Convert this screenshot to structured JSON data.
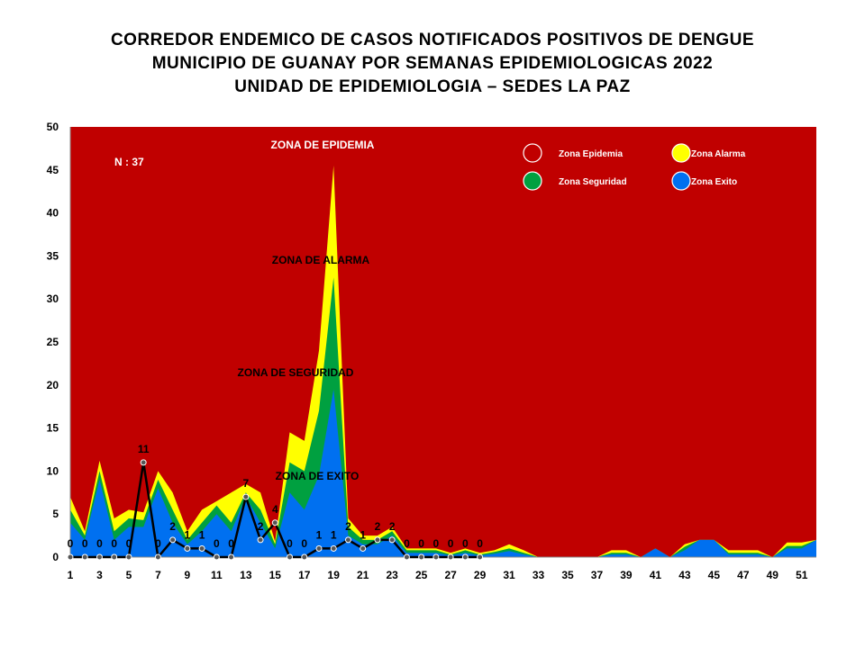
{
  "title_lines": [
    "CORREDOR ENDEMICO DE CASOS NOTIFICADOS POSITIVOS DE DENGUE",
    "MUNICIPIO DE GUANAY POR SEMANAS EPIDEMIOLOGICAS 2022",
    "UNIDAD DE EPIDEMIOLOGIA – SEDES LA PAZ"
  ],
  "colors": {
    "epidemia": "#c00000",
    "alarma": "#ffff00",
    "seguridad": "#00a040",
    "exito": "#0070f0",
    "cases_line": "#000000"
  },
  "chart_data": {
    "type": "area",
    "n_label": "N : 37",
    "zone_labels": {
      "epidemia": "ZONA DE EPIDEMIA",
      "alarma": "ZONA DE ALARMA",
      "seguridad": "ZONA DE  SEGURIDAD",
      "exito": "ZONA DE  EXITO"
    },
    "legend": [
      {
        "label": "Zona Epidemia",
        "color": "#c00000"
      },
      {
        "label": "Zona Alarma",
        "color": "#ffff00"
      },
      {
        "label": "Zona Seguridad",
        "color": "#00a040"
      },
      {
        "label": "Zona Exito",
        "color": "#0070f0"
      }
    ],
    "legend_position": "top-right",
    "ylim": [
      0,
      50
    ],
    "y_ticks": [
      0,
      5,
      10,
      15,
      20,
      25,
      30,
      35,
      40,
      45,
      50
    ],
    "x_ticks": [
      1,
      3,
      5,
      7,
      9,
      11,
      13,
      15,
      17,
      19,
      21,
      23,
      25,
      27,
      29,
      31,
      33,
      35,
      37,
      39,
      41,
      43,
      45,
      47,
      49,
      51
    ],
    "weeks": [
      1,
      2,
      3,
      4,
      5,
      6,
      7,
      8,
      9,
      10,
      11,
      12,
      13,
      14,
      15,
      16,
      17,
      18,
      19,
      20,
      21,
      22,
      23,
      24,
      25,
      26,
      27,
      28,
      29,
      30,
      31,
      32,
      33,
      34,
      35,
      36,
      37,
      38,
      39,
      40,
      41,
      42,
      43,
      44,
      45,
      46,
      47,
      48,
      49,
      50,
      51,
      52
    ],
    "alarma_upper": [
      7,
      3,
      11.2,
      4.5,
      5.5,
      5.2,
      10,
      7.5,
      3,
      5.5,
      6.5,
      7.5,
      8.5,
      7.5,
      1.8,
      14.5,
      13.5,
      24,
      45.5,
      4.5,
      2.5,
      2.5,
      3.5,
      1,
      1,
      1,
      0.5,
      1,
      0.5,
      0.8,
      1.5,
      0.8,
      0,
      0,
      0,
      0,
      0,
      0.8,
      0.8,
      0,
      1,
      0,
      1.5,
      2,
      2,
      0.8,
      0.8,
      0.8,
      0,
      1.7,
      1.7,
      2
    ],
    "seguridad_upper": [
      5.5,
      2.5,
      10,
      3,
      4.5,
      4.3,
      9,
      5.5,
      2,
      4,
      6,
      4,
      7.5,
      5.5,
      1.5,
      11,
      10,
      17,
      32.5,
      3.5,
      2,
      2,
      3,
      0.8,
      0.8,
      0.8,
      0.3,
      0.8,
      0.3,
      0.6,
      1,
      0.5,
      0,
      0,
      0,
      0,
      0,
      0.5,
      0.5,
      0,
      1,
      0,
      1.2,
      2,
      2,
      0.5,
      0.5,
      0.5,
      0,
      1.3,
      1.3,
      2
    ],
    "exito_upper": [
      4,
      2,
      9,
      2,
      3.5,
      3.5,
      8,
      4,
      1.5,
      3,
      5,
      3,
      7,
      4,
      1,
      7.5,
      5.5,
      9.5,
      19.5,
      2.5,
      1.5,
      1.5,
      2.5,
      0.5,
      0.5,
      0.5,
      0.2,
      0.5,
      0.2,
      0.4,
      0.7,
      0.3,
      0,
      0,
      0,
      0,
      0,
      0.3,
      0.3,
      0,
      1,
      0,
      0.8,
      2,
      2,
      0.3,
      0.3,
      0.3,
      0,
      1,
      1,
      2
    ],
    "cases": {
      "weeks": [
        1,
        2,
        3,
        4,
        5,
        6,
        7,
        8,
        9,
        10,
        11,
        12,
        13,
        14,
        15,
        16,
        17,
        18,
        19,
        20,
        21,
        22,
        23,
        24,
        25,
        26,
        27,
        28,
        29
      ],
      "values": [
        0,
        0,
        0,
        0,
        0,
        11,
        0,
        2,
        1,
        1,
        0,
        0,
        7,
        2,
        4,
        0,
        0,
        1,
        1,
        2,
        1,
        2,
        2,
        0,
        0,
        0,
        0,
        0,
        0
      ],
      "labels": [
        "0",
        "0",
        "0",
        "0",
        "0",
        "11",
        "0",
        "2",
        "1",
        "1",
        "0",
        "0",
        "7",
        "2",
        "4",
        "0",
        "0",
        "1",
        "1",
        "2",
        "1",
        "2",
        "2",
        "0",
        "0",
        "0",
        "0",
        "0",
        "0"
      ]
    }
  }
}
